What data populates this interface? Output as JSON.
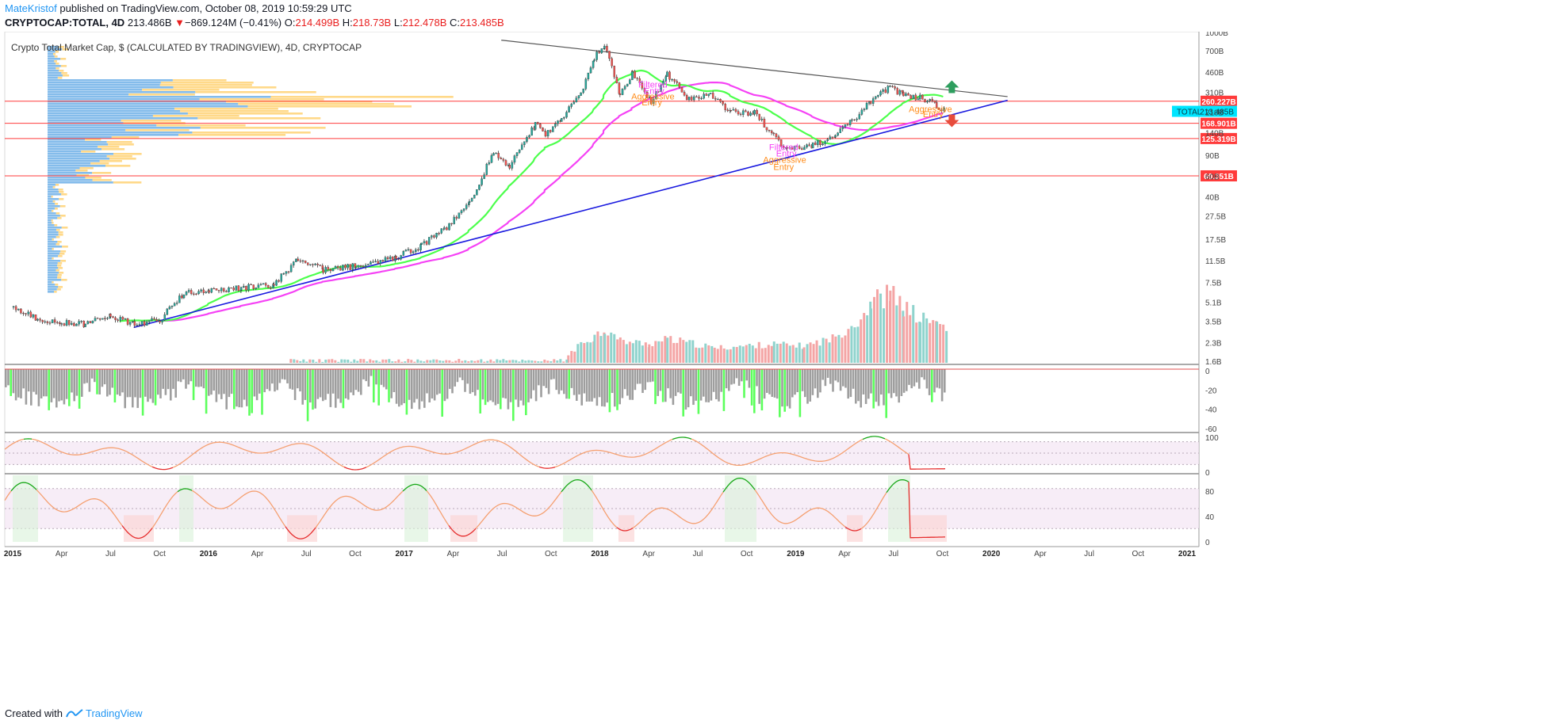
{
  "header": {
    "author": "MateKristof",
    "published_text": "published on TradingView.com, October 08, 2019 10:59:29 UTC",
    "symbol": "CRYPTOCAP:TOTAL, 4D",
    "last": "213.486B",
    "change": "−869.124M (−0.41%)",
    "o_label": "O:",
    "o_value": "214.499B",
    "h_label": "H:",
    "h_value": "218.73B",
    "l_label": "L:",
    "l_value": "212.478B",
    "c_label": "C:",
    "c_value": "213.485B"
  },
  "chart_title": "Crypto Total Market Cap, $ (CALCULATED BY TRADINGVIEW), 4D, CRYPTOCAP",
  "footer": {
    "created_with": "Created with",
    "brand": "TradingView"
  },
  "colors": {
    "up": "#26a69a",
    "down": "#ef5350",
    "ema": "#4cff4c",
    "sma": "#f542f5",
    "trendline": "#1a1adf",
    "resistance": "#ff3b3b",
    "upper_line": "#555555",
    "volume_up": "#8fd3cd",
    "volume_down": "#f4a5a5",
    "histogram": "#9e9e9e",
    "histogram_signal": "#5cff5c",
    "osc_line": "#f5a071",
    "osc_hi": "#18a818",
    "osc_lo": "#e62e2e",
    "vp_blue": "#6fb0e8",
    "vp_orange": "#ffcf6b"
  },
  "chart_data": {
    "type": "candlestick",
    "title": "Crypto Total Market Cap, $ (CALCULATED BY TRADINGVIEW), 4D, CRYPTOCAP",
    "y_scale": "log",
    "y_ticks": [
      "1000B",
      "700B",
      "460B",
      "310B",
      "210B",
      "140B",
      "90B",
      "60B",
      "40B",
      "27.5B",
      "17.5B",
      "11.5B",
      "7.5B",
      "5.1B",
      "3.5B",
      "2.3B",
      "1.6B"
    ],
    "y_tick_values": [
      1000,
      700,
      460,
      310,
      210,
      140,
      90,
      60,
      40,
      27.5,
      17.5,
      11.5,
      7.5,
      5.1,
      3.5,
      2.3,
      1.6
    ],
    "x_ticks": [
      "2015",
      "Apr",
      "Jul",
      "Oct",
      "2016",
      "Apr",
      "Jul",
      "Oct",
      "2017",
      "Apr",
      "Jul",
      "Oct",
      "2018",
      "Apr",
      "Jul",
      "Oct",
      "2019",
      "Apr",
      "Jul",
      "Oct",
      "2020",
      "Apr",
      "Jul",
      "Oct",
      "2021"
    ],
    "x_range": [
      "2015-01-01",
      "2021-01-01"
    ],
    "series_close": [
      [
        "2015-01-01",
        4.6
      ],
      [
        "2015-02-15",
        3.6
      ],
      [
        "2015-04-01",
        3.4
      ],
      [
        "2015-05-15",
        3.3
      ],
      [
        "2015-07-01",
        3.9
      ],
      [
        "2015-08-15",
        3.3
      ],
      [
        "2015-10-01",
        3.6
      ],
      [
        "2015-11-15",
        6.0
      ],
      [
        "2016-01-01",
        6.3
      ],
      [
        "2016-03-01",
        6.7
      ],
      [
        "2016-05-01",
        7.1
      ],
      [
        "2016-06-15",
        12.0
      ],
      [
        "2016-08-01",
        9.6
      ],
      [
        "2016-10-01",
        10.3
      ],
      [
        "2016-12-15",
        12.2
      ],
      [
        "2017-02-01",
        15.5
      ],
      [
        "2017-03-15",
        21.0
      ],
      [
        "2017-05-01",
        36.0
      ],
      [
        "2017-06-15",
        95.0
      ],
      [
        "2017-07-15",
        72.0
      ],
      [
        "2017-09-01",
        165.0
      ],
      [
        "2017-09-20",
        135.0
      ],
      [
        "2017-10-20",
        180.0
      ],
      [
        "2017-11-25",
        310.0
      ],
      [
        "2017-12-20",
        610.0
      ],
      [
        "2018-01-08",
        780.0
      ],
      [
        "2018-02-06",
        300.0
      ],
      [
        "2018-03-01",
        450.0
      ],
      [
        "2018-04-05",
        255.0
      ],
      [
        "2018-05-05",
        440.0
      ],
      [
        "2018-06-15",
        270.0
      ],
      [
        "2018-07-25",
        290.0
      ],
      [
        "2018-09-01",
        210.0
      ],
      [
        "2018-10-15",
        208.0
      ],
      [
        "2018-11-20",
        130.0
      ],
      [
        "2018-12-15",
        103.0
      ],
      [
        "2019-02-01",
        110.0
      ],
      [
        "2019-03-15",
        132.0
      ],
      [
        "2019-04-15",
        175.0
      ],
      [
        "2019-05-20",
        260.0
      ],
      [
        "2019-06-25",
        345.0
      ],
      [
        "2019-07-20",
        290.0
      ],
      [
        "2019-08-20",
        280.0
      ],
      [
        "2019-09-20",
        240.0
      ],
      [
        "2019-10-08",
        213.485
      ]
    ],
    "volume_series": [
      [
        "2017-11-01",
        1.5
      ],
      [
        "2017-12-20",
        2.5
      ],
      [
        "2018-01-08",
        3.0
      ],
      [
        "2018-02-06",
        2.2
      ],
      [
        "2018-04-01",
        2.0
      ],
      [
        "2018-05-05",
        2.3
      ],
      [
        "2018-08-01",
        1.8
      ],
      [
        "2018-11-20",
        2.0
      ],
      [
        "2019-01-15",
        1.9
      ],
      [
        "2019-03-15",
        2.4
      ],
      [
        "2019-05-01",
        4.0
      ],
      [
        "2019-05-20",
        6.5
      ],
      [
        "2019-06-25",
        7.8
      ],
      [
        "2019-07-20",
        5.5
      ],
      [
        "2019-08-20",
        4.0
      ],
      [
        "2019-09-20",
        3.6
      ],
      [
        "2019-10-08",
        3.2
      ]
    ],
    "trendline": [
      [
        "2015-08-15",
        3.1
      ],
      [
        "2020-02-01",
        265
      ]
    ],
    "upper_trendline": [
      [
        "2017-07-01",
        860
      ],
      [
        "2020-02-01",
        285
      ]
    ],
    "horizontal_levels": [
      {
        "label": "260.227B",
        "value": 260.227
      },
      {
        "label": "168.901B",
        "value": 168.901
      },
      {
        "label": "125.319B",
        "value": 125.319
      },
      {
        "label": "60.351B",
        "value": 60.351
      }
    ],
    "last_price_label": {
      "symbol": "TOTAL",
      "value": "213.485B"
    },
    "annotations": [
      {
        "text": "Filtered",
        "color": "#f542f5",
        "date": "2018-04-10",
        "value": 340
      },
      {
        "text": "Entry",
        "color": "#f542f5",
        "date": "2018-04-12",
        "value": 300
      },
      {
        "text": "Aggressive",
        "color": "#ff8c1a",
        "date": "2018-04-10",
        "value": 270
      },
      {
        "text": "Entry",
        "color": "#ff8c1a",
        "date": "2018-04-08",
        "value": 240
      },
      {
        "text": "Filtered",
        "color": "#f542f5",
        "date": "2018-12-10",
        "value": 100
      },
      {
        "text": "Entry",
        "color": "#f542f5",
        "date": "2018-12-15",
        "value": 88
      },
      {
        "text": "Aggressive",
        "color": "#ff8c1a",
        "date": "2018-12-12",
        "value": 78
      },
      {
        "text": "Entry",
        "color": "#ff8c1a",
        "date": "2018-12-10",
        "value": 68
      },
      {
        "text": "Aggressive",
        "color": "#ff8c1a",
        "date": "2019-09-10",
        "value": 210
      },
      {
        "text": "Entry",
        "color": "#ff8c1a",
        "date": "2019-09-15",
        "value": 190
      }
    ],
    "arrows": [
      {
        "direction": "up",
        "color": "#2e9e5e",
        "date": "2019-10-20",
        "value": 340
      },
      {
        "direction": "down",
        "color": "#e74c3c",
        "date": "2019-10-20",
        "value": 180
      }
    ],
    "panels": [
      {
        "name": "histogram",
        "y_ticks": [
          "0",
          "-20",
          "-40",
          "-60"
        ],
        "y_tick_values": [
          0,
          -20,
          -40,
          -60
        ]
      },
      {
        "name": "oscillator_1",
        "y_ticks": [
          "100",
          "0"
        ],
        "y_tick_values": [
          100,
          0
        ]
      },
      {
        "name": "oscillator_2",
        "y_ticks": [
          "80",
          "40",
          "0"
        ],
        "y_tick_values": [
          80,
          40,
          0
        ]
      }
    ]
  }
}
